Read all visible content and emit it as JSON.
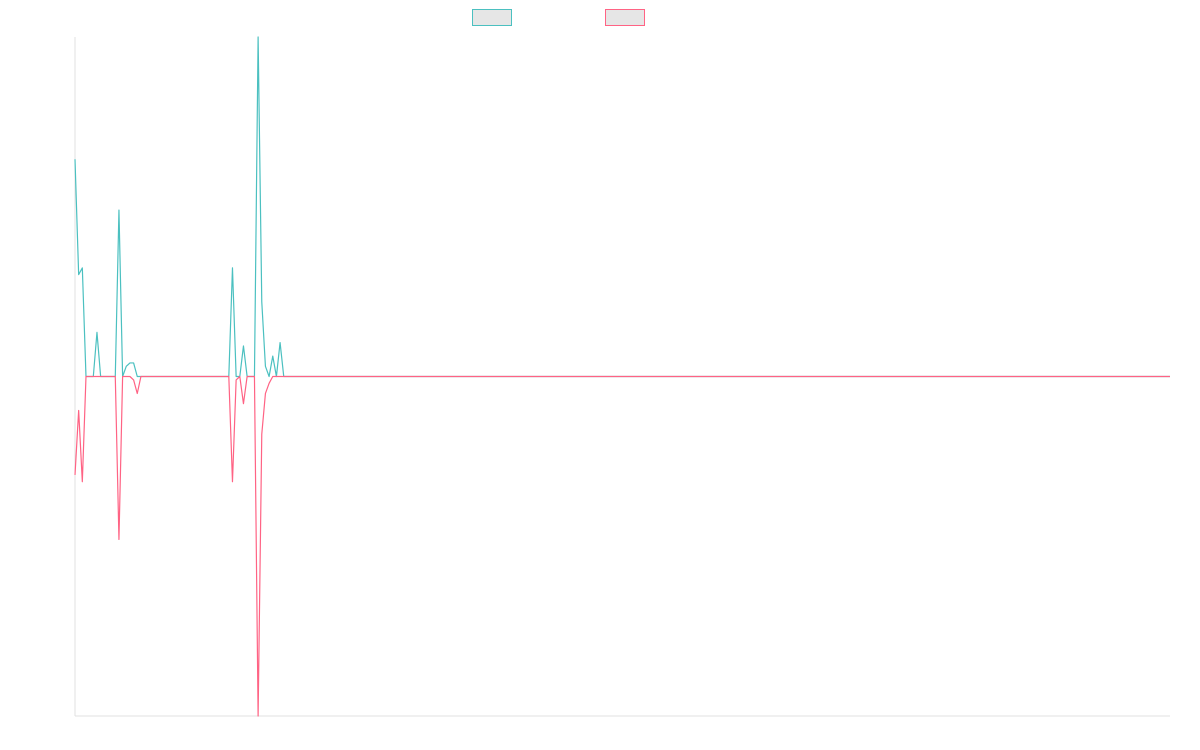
{
  "chart_data": {
    "type": "line",
    "title": "",
    "xlabel": "",
    "ylabel": "",
    "legend_position": "top-center",
    "grid": false,
    "x_count": 300,
    "ylim": [
      -1,
      1
    ],
    "series": [
      {
        "color": "#4bc0c0",
        "fill": "#e6e6e6",
        "points": [
          [
            0,
            0.64
          ],
          [
            1,
            0.3
          ],
          [
            2,
            0.32
          ],
          [
            3,
            0
          ],
          [
            4,
            0
          ],
          [
            5,
            0
          ],
          [
            6,
            0.13
          ],
          [
            7,
            0
          ],
          [
            8,
            0
          ],
          [
            9,
            0
          ],
          [
            10,
            0
          ],
          [
            11,
            0
          ],
          [
            12,
            0.49
          ],
          [
            13,
            0
          ],
          [
            14,
            0.03
          ],
          [
            15,
            0.04
          ],
          [
            16,
            0.04
          ],
          [
            17,
            0
          ],
          [
            18,
            0
          ],
          [
            19,
            0
          ],
          [
            20,
            0
          ],
          [
            21,
            0
          ],
          [
            22,
            0
          ],
          [
            23,
            0
          ],
          [
            24,
            0
          ],
          [
            25,
            0
          ],
          [
            26,
            0
          ],
          [
            27,
            0
          ],
          [
            28,
            0
          ],
          [
            29,
            0
          ],
          [
            30,
            0
          ],
          [
            31,
            0
          ],
          [
            32,
            0
          ],
          [
            33,
            0
          ],
          [
            34,
            0
          ],
          [
            35,
            0
          ],
          [
            36,
            0
          ],
          [
            37,
            0
          ],
          [
            38,
            0
          ],
          [
            39,
            0
          ],
          [
            40,
            0
          ],
          [
            41,
            0
          ],
          [
            42,
            0
          ],
          [
            43,
            0.32
          ],
          [
            44,
            0
          ],
          [
            45,
            0
          ],
          [
            46,
            0.09
          ],
          [
            47,
            0
          ],
          [
            48,
            0
          ],
          [
            49,
            0
          ],
          [
            50,
            1.0
          ],
          [
            51,
            0.22
          ],
          [
            52,
            0.03
          ],
          [
            53,
            0
          ],
          [
            54,
            0.06
          ],
          [
            55,
            0
          ],
          [
            56,
            0.1
          ],
          [
            57,
            0
          ],
          [
            58,
            0
          ],
          [
            299,
            0
          ]
        ]
      },
      {
        "color": "#ff6384",
        "fill": "#e6e6e6",
        "points": [
          [
            0,
            -0.29
          ],
          [
            1,
            -0.1
          ],
          [
            2,
            -0.31
          ],
          [
            3,
            0
          ],
          [
            4,
            0
          ],
          [
            5,
            0
          ],
          [
            6,
            0
          ],
          [
            7,
            0
          ],
          [
            8,
            0
          ],
          [
            9,
            0
          ],
          [
            10,
            0
          ],
          [
            11,
            0
          ],
          [
            12,
            -0.48
          ],
          [
            13,
            0
          ],
          [
            14,
            0
          ],
          [
            15,
            0
          ],
          [
            16,
            -0.01
          ],
          [
            17,
            -0.05
          ],
          [
            18,
            0
          ],
          [
            19,
            0
          ],
          [
            20,
            0
          ],
          [
            21,
            0
          ],
          [
            22,
            0
          ],
          [
            23,
            0
          ],
          [
            24,
            0
          ],
          [
            25,
            0
          ],
          [
            26,
            0
          ],
          [
            27,
            0
          ],
          [
            28,
            0
          ],
          [
            29,
            0
          ],
          [
            30,
            0
          ],
          [
            31,
            0
          ],
          [
            32,
            0
          ],
          [
            33,
            0
          ],
          [
            34,
            0
          ],
          [
            35,
            0
          ],
          [
            36,
            0
          ],
          [
            37,
            0
          ],
          [
            38,
            0
          ],
          [
            39,
            0
          ],
          [
            40,
            0
          ],
          [
            41,
            0
          ],
          [
            42,
            0
          ],
          [
            43,
            -0.31
          ],
          [
            44,
            -0.01
          ],
          [
            45,
            0
          ],
          [
            46,
            -0.08
          ],
          [
            47,
            0
          ],
          [
            48,
            0
          ],
          [
            49,
            0
          ],
          [
            50,
            -1.0
          ],
          [
            51,
            -0.17
          ],
          [
            52,
            -0.05
          ],
          [
            53,
            -0.02
          ],
          [
            54,
            0
          ],
          [
            55,
            0
          ],
          [
            299,
            0
          ]
        ]
      }
    ]
  }
}
